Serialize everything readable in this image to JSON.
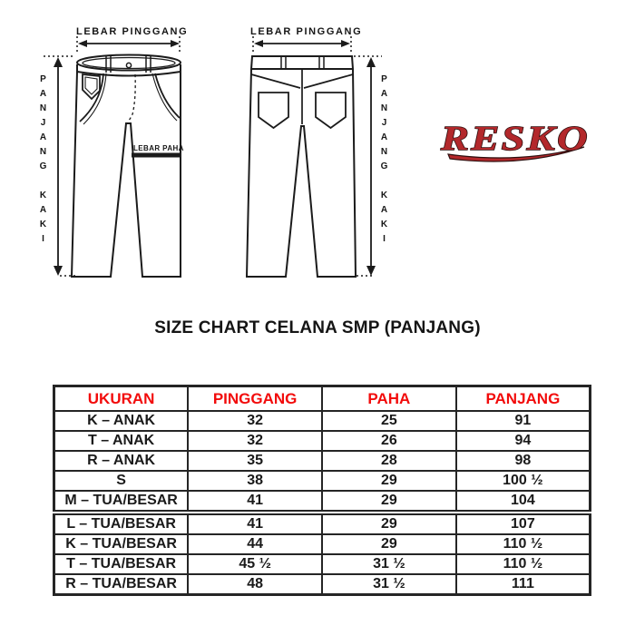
{
  "diagram": {
    "front": {
      "waist_label": "LEBAR PINGGANG",
      "leg_label": "PANJANG KAKI",
      "thigh_label": "LEBAR PAHA"
    },
    "back": {
      "waist_label": "LEBAR PINGGANG",
      "leg_label": "PANJANG KAKI"
    }
  },
  "logo": {
    "text": "RESKO"
  },
  "title": "SIZE CHART CELANA SMP (PANJANG)",
  "table": {
    "headers": [
      "UKURAN",
      "PINGGANG",
      "PAHA",
      "PANJANG"
    ],
    "rows": [
      [
        "K – ANAK",
        "32",
        "25",
        "91"
      ],
      [
        "T – ANAK",
        "32",
        "26",
        "94"
      ],
      [
        "R – ANAK",
        "35",
        "28",
        "98"
      ],
      [
        "S",
        "38",
        "29",
        "100 ½"
      ],
      [
        "M – TUA/BESAR",
        "41",
        "29",
        "104"
      ],
      [
        "L – TUA/BESAR",
        "41",
        "29",
        "107"
      ],
      [
        "K – TUA/BESAR",
        "44",
        "29",
        "110 ½"
      ],
      [
        "T – TUA/BESAR",
        "45 ½",
        "31 ½",
        "110 ½"
      ],
      [
        "R – TUA/BESAR",
        "48",
        "31 ½",
        "111"
      ]
    ],
    "group_separator_row_index": 5
  },
  "colors": {
    "line": "#1b1b1b",
    "table_border": "#252525",
    "header_text_red": "#f20b0b",
    "logo_red": "#b3282b",
    "logo_outline": "#2e1010"
  }
}
